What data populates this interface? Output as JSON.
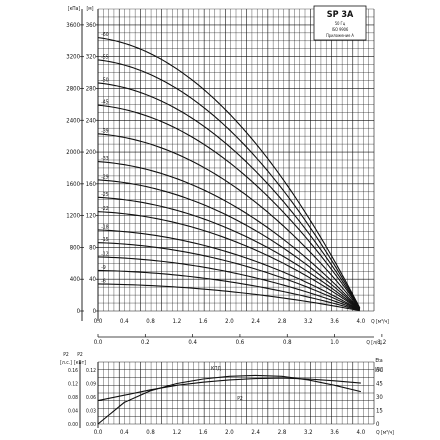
{
  "chart_data": [
    {
      "type": "line",
      "panel": "performance-curves",
      "title": "SP 3A",
      "subtitle_lines": [
        "50 Гц",
        "ISO 9906",
        "Приложение A"
      ],
      "left_axis_units": [
        "[кПа]",
        "[м]"
      ],
      "left_ticks_kpa": [
        "3600",
        "3200",
        "2800",
        "2400",
        "2000",
        "1600",
        "1200",
        "800",
        "400",
        "0"
      ],
      "left_ticks_m": [
        "360",
        "320",
        "280",
        "240",
        "200",
        "160",
        "120",
        "80",
        "40",
        "0"
      ],
      "x_ticks_m3h": [
        "0.0",
        "0.4",
        "0.8",
        "1.2",
        "1.6",
        "2.0",
        "2.4",
        "2.8",
        "3.2",
        "3.6",
        "4.0"
      ],
      "x_unit_m3h": "Q [м³/ч]",
      "x_ticks_ls": [
        "0.0",
        "0.2",
        "0.4",
        "0.6",
        "0.8",
        "1.0",
        "1.2"
      ],
      "x_unit_ls": "Q [л/с]",
      "xlim": [
        0,
        4.2
      ],
      "ylim": [
        0,
        380
      ],
      "stage_labels": [
        "-60",
        "-55",
        "-50",
        "-45",
        "-39",
        "-33",
        "-29",
        "-25",
        "-22",
        "-18",
        "-15",
        "-12",
        "-9",
        "-6"
      ],
      "stage_heads": [
        344,
        316,
        287,
        259,
        223,
        188,
        165,
        143,
        125,
        102,
        86,
        68,
        51,
        34
      ]
    },
    {
      "type": "line",
      "panel": "power-efficiency-curves",
      "left_axis_units": [
        "P2",
        "P2",
        "[л.с.]",
        "[кВт]"
      ],
      "left_ticks_hp": [
        "0.16",
        "0.12",
        "0.08",
        "0.04",
        "0.00"
      ],
      "left_ticks_kw": [
        "0.12",
        "0.09",
        "0.06",
        "0.03",
        "0.00"
      ],
      "right_axis_units": [
        "Eta",
        "[%]"
      ],
      "right_ticks_pct": [
        "60",
        "45",
        "30",
        "15",
        "0"
      ],
      "x_ticks_m3h": [
        "0.0",
        "0.4",
        "0.8",
        "1.2",
        "1.6",
        "2.0",
        "2.4",
        "2.8",
        "3.2",
        "3.6",
        "4.0"
      ],
      "x_unit_m3h": "Q [м³/ч]",
      "xlim": [
        0,
        4.2
      ],
      "series": [
        {
          "name": "КПД",
          "x": [
            0.0,
            0.4,
            0.8,
            1.2,
            1.6,
            2.0,
            2.4,
            2.8,
            3.2,
            3.6,
            4.0
          ],
          "values": [
            0,
            24,
            37,
            45,
            50,
            53,
            54,
            53,
            49,
            43,
            36
          ]
        },
        {
          "name": "P2",
          "x": [
            0.0,
            0.4,
            0.8,
            1.2,
            1.6,
            2.0,
            2.4,
            2.8,
            3.2,
            3.6,
            4.0
          ],
          "values": [
            0.052,
            0.064,
            0.076,
            0.086,
            0.093,
            0.098,
            0.101,
            0.102,
            0.1,
            0.096,
            0.091
          ]
        }
      ]
    }
  ]
}
